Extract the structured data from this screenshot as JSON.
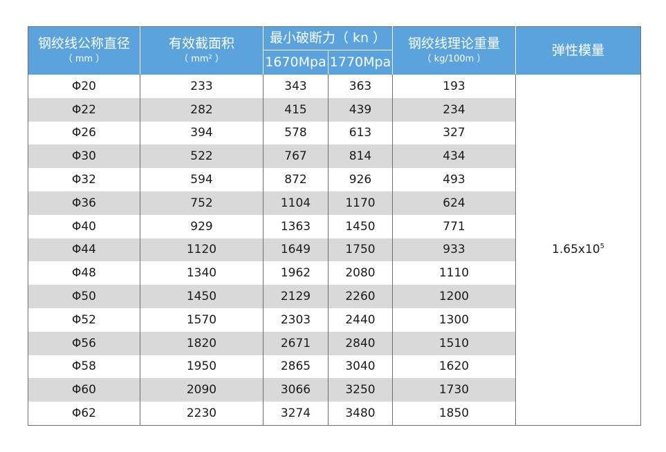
{
  "headers": {
    "diameter": "钢绞线公称直径",
    "diameter_unit": "（ mm ）",
    "area": "有效截面积",
    "area_unit": "（ mm² ）",
    "breaking": "最小破断力（ kn ）",
    "grade_a": "1670Mpa",
    "grade_b": "1770Mpa",
    "weight": "钢绞线理论重量",
    "weight_unit": "（ kg/100m ）",
    "modulus": "弹性模量"
  },
  "modulus_value": {
    "base": "1.65x10",
    "exp": "5"
  },
  "rows": [
    {
      "d": "Φ20",
      "area": "233",
      "f1670": "343",
      "f1770": "363",
      "weight": "193"
    },
    {
      "d": "Φ22",
      "area": "282",
      "f1670": "415",
      "f1770": "439",
      "weight": "234"
    },
    {
      "d": "Φ26",
      "area": "394",
      "f1670": "578",
      "f1770": "613",
      "weight": "327"
    },
    {
      "d": "Φ30",
      "area": "522",
      "f1670": "767",
      "f1770": "814",
      "weight": "434"
    },
    {
      "d": "Φ32",
      "area": "594",
      "f1670": "872",
      "f1770": "926",
      "weight": "493"
    },
    {
      "d": "Φ36",
      "area": "752",
      "f1670": "1104",
      "f1770": "1170",
      "weight": "624"
    },
    {
      "d": "Φ40",
      "area": "929",
      "f1670": "1363",
      "f1770": "1450",
      "weight": "771"
    },
    {
      "d": "Φ44",
      "area": "1120",
      "f1670": "1649",
      "f1770": "1750",
      "weight": "933"
    },
    {
      "d": "Φ48",
      "area": "1340",
      "f1670": "1962",
      "f1770": "2080",
      "weight": "1110"
    },
    {
      "d": "Φ50",
      "area": "1450",
      "f1670": "2129",
      "f1770": "2260",
      "weight": "1200"
    },
    {
      "d": "Φ52",
      "area": "1570",
      "f1670": "2303",
      "f1770": "2440",
      "weight": "1300"
    },
    {
      "d": "Φ56",
      "area": "1820",
      "f1670": "2671",
      "f1770": "2840",
      "weight": "1510"
    },
    {
      "d": "Φ58",
      "area": "1950",
      "f1670": "2865",
      "f1770": "3040",
      "weight": "1620"
    },
    {
      "d": "Φ60",
      "area": "2090",
      "f1670": "3066",
      "f1770": "3250",
      "weight": "1730"
    },
    {
      "d": "Φ62",
      "area": "2230",
      "f1670": "3274",
      "f1770": "3480",
      "weight": "1850"
    }
  ],
  "colors": {
    "header_bg": "#5aa3dd",
    "stripe": "#d9d9d9",
    "border": "#6d6d6d"
  }
}
